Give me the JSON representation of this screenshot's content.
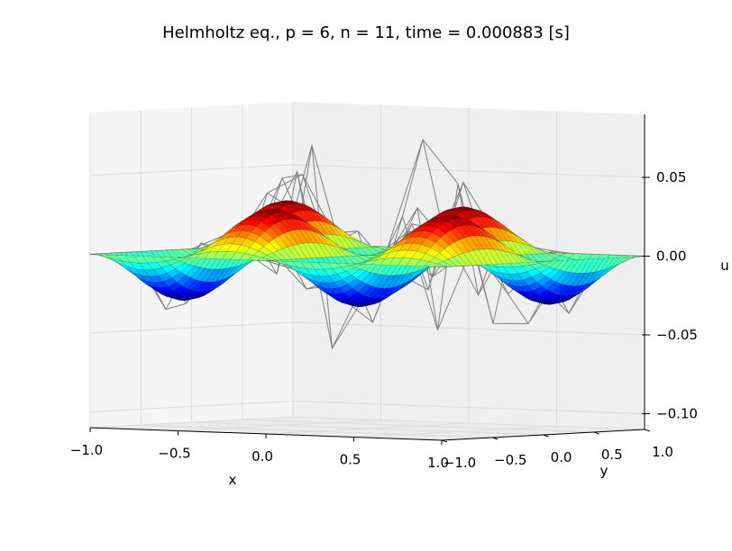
{
  "chart_data": {
    "type": "surface3d",
    "title": "Helmholtz eq., p = 6, n = 11, time = 0.000883 [s]",
    "xlabel": "x",
    "ylabel": "y",
    "zlabel": "u",
    "xlim": [
      -1.0,
      1.0
    ],
    "ylim": [
      -1.0,
      1.0
    ],
    "zlim": [
      -0.11,
      0.09
    ],
    "x_ticks": [
      "−1.0",
      "−0.5",
      "0.0",
      "0.5",
      "1.0"
    ],
    "y_ticks": [
      "−1.0",
      "−0.5",
      "0.0",
      "0.5",
      "1.0"
    ],
    "z_ticks": [
      "−0.10",
      "−0.05",
      "0.00",
      "0.05"
    ],
    "colormap": "jet",
    "grid": true,
    "series": [
      {
        "kind": "surface",
        "function": "0.03*sin(2*pi*x)*sin(pi*y)",
        "resolution": 40
      },
      {
        "kind": "wireframe",
        "grid_size": 11,
        "color": "#7f7f7f",
        "amplitude": 0.07
      }
    ]
  }
}
